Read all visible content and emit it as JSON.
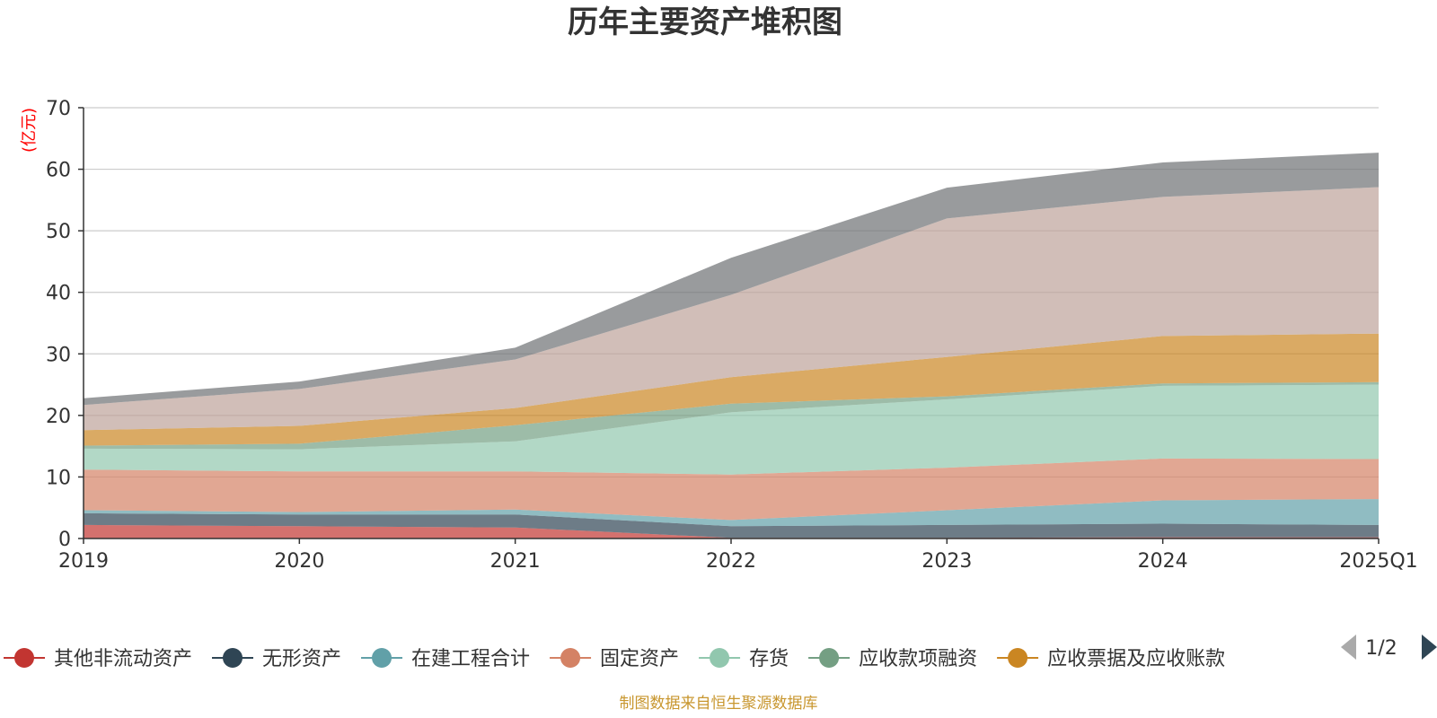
{
  "title": "历年主要资产堆积图",
  "unit": "(亿元)",
  "source": "制图数据来自恒生聚源数据库",
  "pager": {
    "text": "1/2"
  },
  "chart_data": {
    "type": "area",
    "stacked": true,
    "categories": [
      "2019",
      "2020",
      "2021",
      "2022",
      "2023",
      "2024",
      "2025Q1"
    ],
    "ylim": [
      0,
      70
    ],
    "yticks": [
      0,
      10,
      20,
      30,
      40,
      50,
      60,
      70
    ],
    "grid": true,
    "legend_position": "bottom",
    "series": [
      {
        "name": "其他非流动资产",
        "color": "#c23531",
        "values": [
          2.2,
          2.0,
          1.8,
          0.1,
          0.1,
          0.2,
          0.2
        ]
      },
      {
        "name": "无形资产",
        "color": "#2f4554",
        "values": [
          1.9,
          1.9,
          2.1,
          1.9,
          2.1,
          2.2,
          2.0
        ]
      },
      {
        "name": "在建工程合计",
        "color": "#61a0a8",
        "values": [
          0.5,
          0.4,
          0.8,
          1.0,
          2.4,
          3.8,
          4.2
        ]
      },
      {
        "name": "固定资产",
        "color": "#d48265",
        "values": [
          6.6,
          6.6,
          6.2,
          7.4,
          6.9,
          6.8,
          6.5
        ]
      },
      {
        "name": "存货",
        "color": "#91c7ae",
        "values": [
          3.4,
          3.6,
          4.9,
          10.1,
          11.1,
          11.8,
          12.1
        ]
      },
      {
        "name": "应收款项融资",
        "color": "#749f83",
        "values": [
          0.5,
          0.9,
          2.6,
          1.4,
          0.5,
          0.4,
          0.4
        ]
      },
      {
        "name": "应收票据及应收账款",
        "color": "#ca8622",
        "values": [
          2.5,
          2.9,
          2.8,
          4.3,
          6.4,
          7.7,
          7.9
        ]
      },
      {
        "name": "",
        "color": "#bda29a",
        "values": [
          4.1,
          6.0,
          7.9,
          13.4,
          22.5,
          22.6,
          23.8
        ]
      },
      {
        "name": "",
        "color": "#6e7074",
        "values": [
          1.1,
          1.2,
          1.9,
          6.0,
          5.0,
          5.6,
          5.6
        ]
      }
    ]
  }
}
